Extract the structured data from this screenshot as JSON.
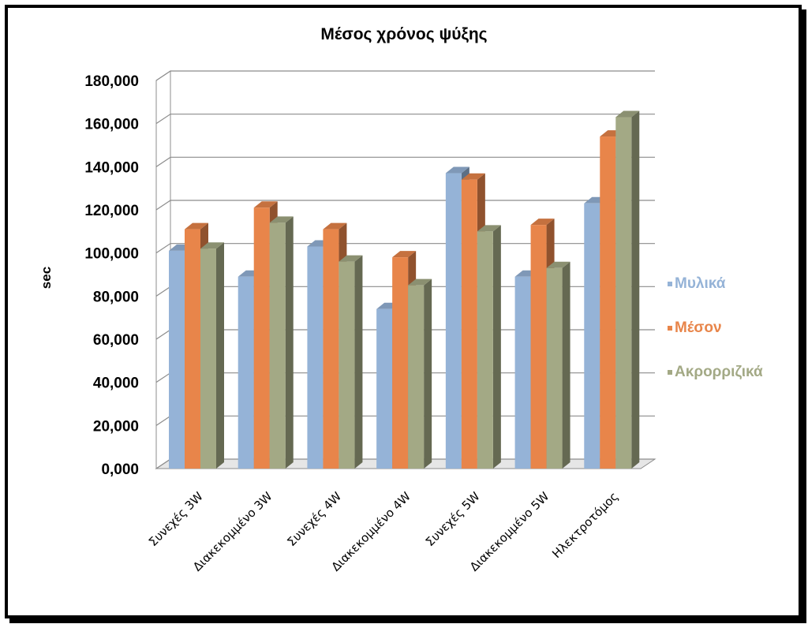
{
  "chart_data": {
    "type": "bar",
    "title": "Μέσος χρόνος ψύξης",
    "ylabel": "sec",
    "xlabel": "",
    "ylim": [
      0,
      180
    ],
    "yticks": [
      "0,000",
      "20,000",
      "40,000",
      "60,000",
      "80,000",
      "100,000",
      "120,000",
      "140,000",
      "160,000",
      "180,000"
    ],
    "categories": [
      "Συνεχές 3W",
      "Διακεκομμένο 3W",
      "Συνεχές 4W",
      "Διακεκομμένο 4W",
      "Συνεχές 5W",
      "Διακεκομμένο 5W",
      "Ηλεκτροτόμος"
    ],
    "series": [
      {
        "name": "Μυλικά",
        "color": "#95B3D7",
        "values": [
          101,
          89,
          103,
          74,
          137,
          89,
          123
        ]
      },
      {
        "name": "Μέσον",
        "color": "#E8854A",
        "values": [
          111,
          121,
          111,
          98,
          134,
          113,
          154
        ]
      },
      {
        "name": "Ακρορριζικά",
        "color": "#A3A985",
        "values": [
          102,
          114,
          96,
          85,
          110,
          93,
          163
        ]
      }
    ],
    "legend_position": "right",
    "grid": true
  }
}
